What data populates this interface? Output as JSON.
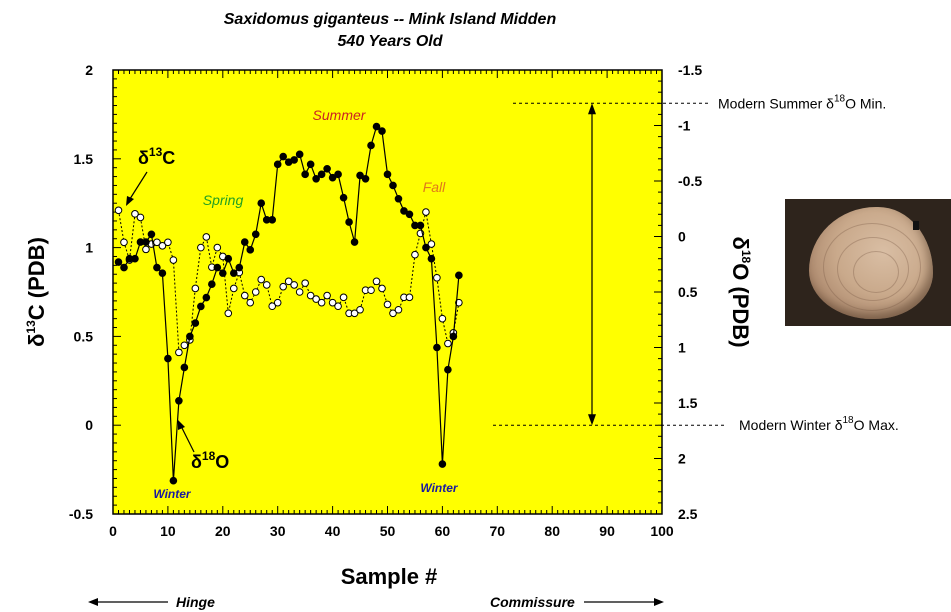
{
  "chart_data": {
    "type": "line",
    "title": "Saxidomus giganteus -- Mink Island Midden",
    "subtitle": "540 Years Old",
    "xlabel": "Sample #",
    "ylabel_left": "δ13C (PDB)",
    "ylabel_right": "δ18O (PDB)",
    "xlim": [
      0,
      100
    ],
    "ylim_left": [
      -0.5,
      2
    ],
    "ylim_right": [
      2.5,
      -1.5
    ],
    "right_axis_reversed": true,
    "x_ticks": [
      "0",
      "10",
      "20",
      "30",
      "40",
      "50",
      "60",
      "70",
      "80",
      "90",
      "100"
    ],
    "y_left_ticks": [
      "2",
      "1.5",
      "1",
      "0.5",
      "0",
      "-0.5"
    ],
    "y_right_ticks": [
      "-1.5",
      "-1",
      "-0.5",
      "0",
      "0.5",
      "1",
      "1.5",
      "2",
      "2.5"
    ],
    "background_color": "#ffff00",
    "grid": false,
    "legend": "none",
    "series": [
      {
        "axis": "right",
        "marker": "filled-circle",
        "line": "solid",
        "x": [
          1,
          2,
          3,
          4,
          5,
          6,
          7,
          8,
          9,
          10,
          11,
          12,
          13,
          14,
          15,
          16,
          17,
          18,
          19,
          20,
          21,
          22,
          23,
          24,
          25,
          26,
          27,
          28,
          29,
          30,
          31,
          32,
          33,
          34,
          35,
          36,
          37,
          38,
          39,
          40,
          41,
          42,
          43,
          44,
          45,
          46,
          47,
          48,
          49,
          50,
          51,
          52,
          53,
          54,
          55,
          56,
          57,
          58,
          59,
          60,
          61,
          62,
          63
        ],
        "values": [
          0.23,
          0.28,
          0.2,
          0.2,
          0.05,
          0.05,
          -0.02,
          0.28,
          0.33,
          1.1,
          2.2,
          1.48,
          1.18,
          0.9,
          0.78,
          0.63,
          0.55,
          0.43,
          0.28,
          0.33,
          0.2,
          0.33,
          0.28,
          0.05,
          0.12,
          -0.02,
          -0.3,
          -0.15,
          -0.15,
          -0.65,
          -0.72,
          -0.67,
          -0.69,
          -0.74,
          -0.56,
          -0.65,
          -0.52,
          -0.56,
          -0.61,
          -0.53,
          -0.56,
          -0.35,
          -0.13,
          0.05,
          -0.55,
          -0.52,
          -0.82,
          -0.99,
          -0.95,
          -0.56,
          -0.46,
          -0.34,
          -0.23,
          -0.2,
          -0.1,
          -0.1,
          0.1,
          0.2,
          1.0,
          2.05,
          1.2,
          0.9,
          0.35
        ]
      },
      {
        "axis": "left",
        "marker": "open-circle",
        "line": "dotted",
        "x": [
          1,
          2,
          3,
          4,
          5,
          6,
          7,
          8,
          9,
          10,
          11,
          12,
          13,
          14,
          15,
          16,
          17,
          18,
          19,
          20,
          21,
          22,
          23,
          24,
          25,
          26,
          27,
          28,
          29,
          30,
          31,
          32,
          33,
          34,
          35,
          36,
          37,
          38,
          39,
          40,
          41,
          42,
          43,
          44,
          45,
          46,
          47,
          48,
          49,
          50,
          51,
          52,
          53,
          54,
          55,
          56,
          57,
          58,
          59,
          60,
          61,
          62,
          63
        ],
        "values": [
          1.21,
          1.03,
          0.93,
          1.19,
          1.17,
          0.99,
          1.02,
          1.03,
          1.01,
          1.03,
          0.93,
          0.41,
          0.45,
          0.48,
          0.77,
          1.0,
          1.06,
          0.89,
          1.0,
          0.95,
          0.63,
          0.77,
          0.86,
          0.73,
          0.69,
          0.75,
          0.82,
          0.79,
          0.67,
          0.69,
          0.78,
          0.81,
          0.79,
          0.75,
          0.8,
          0.73,
          0.71,
          0.69,
          0.73,
          0.69,
          0.67,
          0.72,
          0.63,
          0.63,
          0.65,
          0.76,
          0.76,
          0.81,
          0.77,
          0.68,
          0.63,
          0.65,
          0.72,
          0.72,
          0.96,
          1.08,
          1.2,
          1.02,
          0.83,
          0.6,
          0.46,
          0.52,
          0.69
        ]
      }
    ],
    "annotations": {
      "callout_d13c": "δ13C",
      "callout_d18o": "δ18O",
      "summer": "Summer",
      "spring": "Spring",
      "fall": "Fall",
      "winter_left": "Winter",
      "winter_right": "Winter",
      "hinge": "Hinge",
      "commissure": "Commissure",
      "modern_summer": "Modern Summer δ18O Min.",
      "modern_winter": "Modern Winter δ18O Max."
    },
    "modern_summer_value_d18o": -1.2,
    "modern_winter_value_d18o": 1.7,
    "colors": {
      "summer": "#cc2222",
      "spring": "#22a022",
      "fall": "#e07a1a",
      "winter": "#1a1aa0"
    }
  }
}
